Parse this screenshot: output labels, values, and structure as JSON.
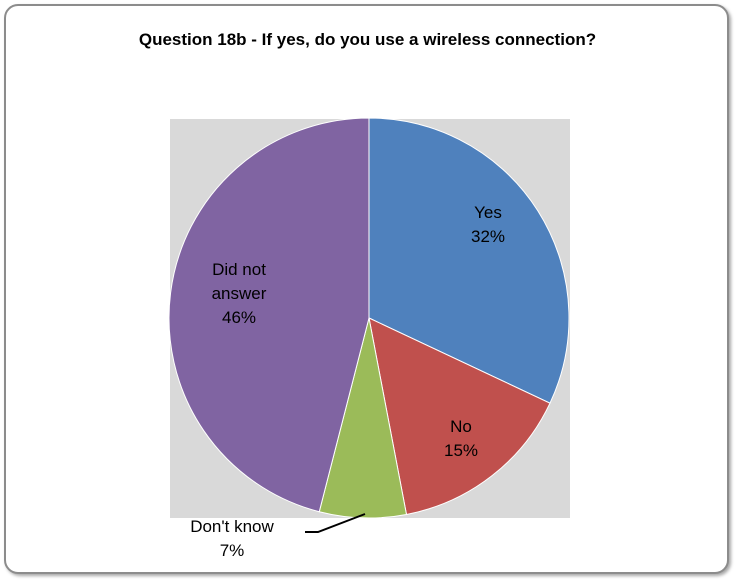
{
  "chart_data": {
    "type": "pie",
    "title": "Question 18b - If yes, do you use a wireless connection?",
    "slices": [
      {
        "label": "Yes",
        "value": 32,
        "label_lines": [
          "Yes",
          "32%"
        ],
        "color": "#4f81bd"
      },
      {
        "label": "No",
        "value": 15,
        "label_lines": [
          "No",
          "15%"
        ],
        "color": "#c0504d"
      },
      {
        "label": "Don't know",
        "value": 7,
        "label_lines": [
          "Don't know",
          "7%"
        ],
        "color": "#9bbb59"
      },
      {
        "label": "Did not answer",
        "value": 46,
        "label_lines": [
          "Did not",
          "answer",
          "46%"
        ],
        "color": "#8064a2"
      }
    ],
    "plot_background": "#d9d9d9",
    "legend": "none",
    "grid": false
  }
}
